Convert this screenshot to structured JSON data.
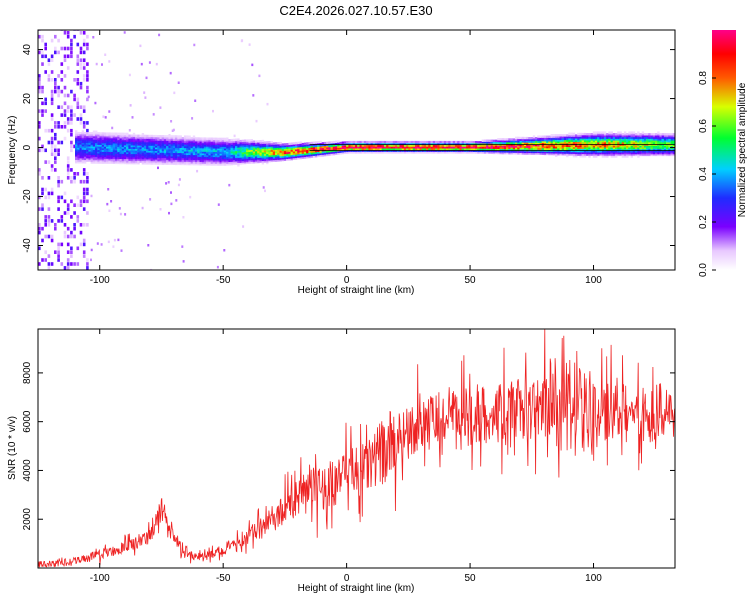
{
  "figure": {
    "title": "C2E4.2026.027.10.57.E30"
  },
  "colorbar": {
    "label": "Normalized spectral amplitude",
    "ticks": [
      "0.0",
      "0.2",
      "0.4",
      "0.6",
      "0.8"
    ],
    "tick_values": [
      0.0,
      0.2,
      0.4,
      0.6,
      0.8
    ]
  },
  "chart_data": [
    {
      "type": "heatmap",
      "title": "C2E4.2026.027.10.57.E30",
      "xlabel": "Height of straight line (km)",
      "ylabel": "Frequency (Hz)",
      "xlim": [
        -125,
        133
      ],
      "ylim": [
        -50,
        48
      ],
      "xticks": [
        -100,
        -50,
        0,
        50,
        100
      ],
      "xtick_labels": [
        "-100",
        "-50",
        "0",
        "50",
        "100"
      ],
      "yticks": [
        -40,
        -20,
        0,
        20,
        40
      ],
      "ytick_labels": [
        "-40",
        "-20",
        "0",
        "20",
        "40"
      ],
      "colormap": "rainbow (white-violet-blue-cyan-green-yellow-red-magenta)",
      "description_points": [
        {
          "x": -110,
          "center_hz": 0,
          "band_halfwidth_hz": 5,
          "peak_amp": 0.35
        },
        {
          "x": -50,
          "center_hz": -2,
          "band_halfwidth_hz": 4,
          "peak_amp": 0.4
        },
        {
          "x": -25,
          "center_hz": -2,
          "band_halfwidth_hz": 2,
          "peak_amp": 0.85
        },
        {
          "x": 0,
          "center_hz": 0,
          "band_halfwidth_hz": 1,
          "peak_amp": 0.95
        },
        {
          "x": 50,
          "center_hz": 0,
          "band_halfwidth_hz": 1,
          "peak_amp": 0.95
        },
        {
          "x": 100,
          "center_hz": 1,
          "band_halfwidth_hz": 3,
          "peak_amp": 0.8
        },
        {
          "x": 130,
          "center_hz": 1,
          "band_halfwidth_hz": 3,
          "peak_amp": 0.6
        }
      ]
    },
    {
      "type": "line",
      "xlabel": "Height of straight line (km)",
      "ylabel": "SNR (10 * v/v)",
      "xlim": [
        -125,
        133
      ],
      "ylim": [
        0,
        9800
      ],
      "xticks": [
        -100,
        -50,
        0,
        50,
        100
      ],
      "xtick_labels": [
        "-100",
        "-50",
        "0",
        "50",
        "100"
      ],
      "yticks": [
        2000,
        4000,
        6000,
        8000
      ],
      "ytick_labels": [
        "2000",
        "4000",
        "6000",
        "8000"
      ],
      "series": [
        {
          "name": "SNR",
          "color": "#ee2222",
          "x": [
            -125,
            -115,
            -105,
            -95,
            -85,
            -80,
            -75,
            -72,
            -68,
            -60,
            -52,
            -45,
            -40,
            -35,
            -30,
            -25,
            -20,
            -15,
            -10,
            -5,
            0,
            5,
            10,
            15,
            20,
            25,
            30,
            35,
            40,
            45,
            50,
            55,
            60,
            65,
            70,
            75,
            80,
            85,
            90,
            93,
            95,
            100,
            105,
            110,
            115,
            120,
            125,
            133
          ],
          "values": [
            150,
            200,
            400,
            700,
            1000,
            1200,
            2400,
            1500,
            900,
            400,
            600,
            900,
            1300,
            1600,
            2000,
            2400,
            2800,
            3100,
            3300,
            3500,
            3700,
            3900,
            4300,
            4800,
            5300,
            5700,
            5900,
            6000,
            6100,
            6150,
            6200,
            6300,
            6300,
            6400,
            6450,
            6500,
            6600,
            6700,
            6500,
            7000,
            6400,
            6300,
            6400,
            6400,
            6300,
            6300,
            6400,
            6400
          ]
        }
      ]
    }
  ]
}
